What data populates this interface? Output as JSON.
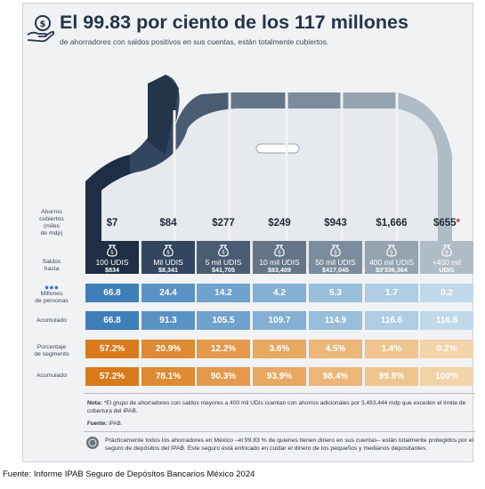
{
  "title": "El 99.83 por ciento de los 117 millones",
  "subtitle": "de ahorradores con saldos positivos en sus cuentas, están totalmente cubiertos.",
  "labels": {
    "ahorros": [
      "Ahorros",
      "cubiertos",
      "(miles",
      "de mdp)"
    ],
    "saldos": [
      "Saldos",
      "hasta"
    ],
    "millones": [
      "Millones",
      "de personas"
    ],
    "acumulado": "Acumulado",
    "porcentaje": [
      "Porcentaje",
      "de segmento"
    ]
  },
  "colors": {
    "blue_shades": [
      "#1e2f44",
      "#33465f",
      "#4a5c72",
      "#647587",
      "#7d8c9c",
      "#95a3b0",
      "#b0bcc6"
    ],
    "row_blue": [
      "#3e7fb9",
      "#5a93c5",
      "#6fa2cd",
      "#83b0d4",
      "#97bedb",
      "#aecde4",
      "#c0d8ea"
    ],
    "row_orange": [
      "#d97a1c",
      "#de8a34",
      "#e39a4c",
      "#e7a862",
      "#ebb677",
      "#efc48e",
      "#f3d3a8"
    ],
    "footnote_star": "#c0392b"
  },
  "chart_data": {
    "type": "table",
    "columns": [
      {
        "ahorros": "$7",
        "saldos_l1": "100 UDIS",
        "saldos_l2": "$834",
        "millones": "66.8",
        "acum_personas": "66.8",
        "porcentaje": "57.2%",
        "acum_pct": "57.2%"
      },
      {
        "ahorros": "$84",
        "saldos_l1": "Mil UDIS",
        "saldos_l2": "$8,341",
        "millones": "24.4",
        "acum_personas": "91.3",
        "porcentaje": "20.9%",
        "acum_pct": "78.1%"
      },
      {
        "ahorros": "$277",
        "saldos_l1": "5 mil UDIS",
        "saldos_l2": "$41,705",
        "millones": "14.2",
        "acum_personas": "105.5",
        "porcentaje": "12.2%",
        "acum_pct": "90.3%"
      },
      {
        "ahorros": "$249",
        "saldos_l1": "10 mil UDIS",
        "saldos_l2": "$83,409",
        "millones": "4.2",
        "acum_personas": "109.7",
        "porcentaje": "3.6%",
        "acum_pct": "93.9%"
      },
      {
        "ahorros": "$943",
        "saldos_l1": "50 mil UDIS",
        "saldos_l2": "$417,045",
        "millones": "5.3",
        "acum_personas": "114.9",
        "porcentaje": "4.5%",
        "acum_pct": "98.4%"
      },
      {
        "ahorros": "$1,666",
        "saldos_l1": "400 mil UDIS",
        "saldos_l2": "$3'336,364",
        "millones": "1.7",
        "acum_personas": "116.6",
        "porcentaje": "1.4%",
        "acum_pct": "99.8%"
      },
      {
        "ahorros": "$655*",
        "saldos_l1": "+400 mil",
        "saldos_l2": "UDIS",
        "millones": "0.2",
        "acum_personas": "116.8",
        "porcentaje": "0.2%",
        "acum_pct": "100%"
      }
    ]
  },
  "notes": {
    "nota_label": "Nota:",
    "nota_text": "*El grupo de ahorradores con saldos mayores a 400 mil UDIs cuentan con ahorros adicionales por 3,493,444 mdp que exceden el límite de cobertura del IPAB.",
    "fuente_label": "Fuente:",
    "fuente_text": "IPAB.",
    "bottom_text": "Prácticamente todos los ahorradores en México –el 99.83 % de quienes tienen dinero en sus cuentas– están totalmente protegidos por el seguro de depósitos del IPAB. Este seguro está enfocado en cuidar el dinero de los pequeños y medianos depositantes."
  },
  "footer": "Fuente: Informe IPAB Seguro de Depósitos Bancarios México 2024"
}
